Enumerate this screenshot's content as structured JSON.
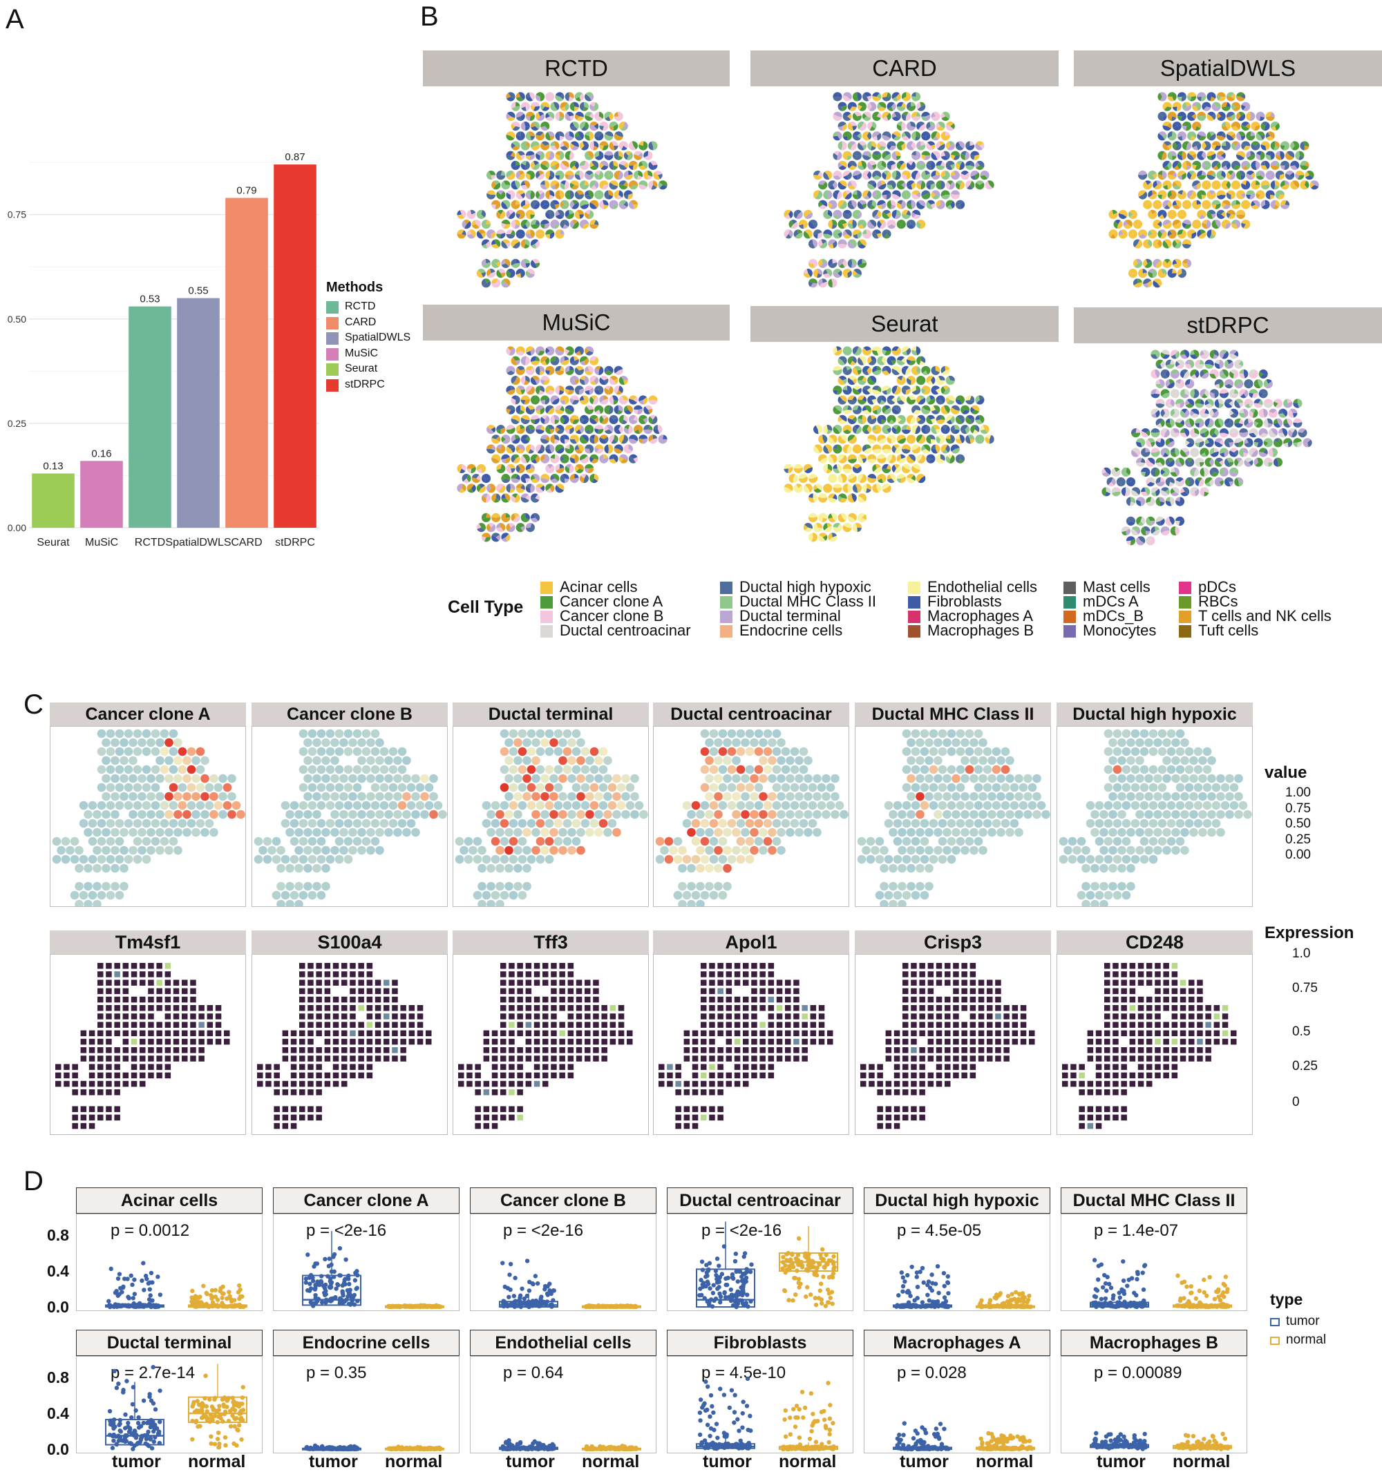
{
  "panels": {
    "a": "A",
    "b": "B",
    "c": "C",
    "d": "D"
  },
  "colors": {
    "RCTD": "#6cb897",
    "CARD": "#f08a68",
    "SpatialDWLS": "#8e94b6",
    "MuSiC": "#d57fba",
    "Seurat": "#9ccc55",
    "stDRPC": "#e8392f",
    "tumor": "#3c62a8",
    "normal": "#e2ad36",
    "low": "#a8ccd2",
    "high": "#e24a2a"
  },
  "chart_data": [
    {
      "id": "A",
      "type": "bar",
      "categories": [
        "Seurat",
        "MuSiC",
        "RCTD",
        "SpatialDWLS",
        "CARD",
        "stDRPC"
      ],
      "values": [
        0.13,
        0.16,
        0.53,
        0.55,
        0.79,
        0.87
      ],
      "value_labels": [
        "0.13",
        "0.16",
        "0.53",
        "0.55",
        "0.79",
        "0.87"
      ],
      "ylim": [
        0,
        0.9
      ],
      "yticks": [
        "0.00",
        "0.25",
        "0.50",
        "0.75"
      ],
      "ytick_values": [
        0,
        0.25,
        0.5,
        0.75
      ],
      "legend_title": "Methods",
      "legend": [
        "RCTD",
        "CARD",
        "SpatialDWLS",
        "MuSiC",
        "Seurat",
        "stDRPC"
      ]
    },
    {
      "id": "B",
      "type": "spatial-pie",
      "methods": [
        "RCTD",
        "CARD",
        "SpatialDWLS",
        "MuSiC",
        "Seurat",
        "stDRPC"
      ],
      "legend_title": "Cell Type",
      "cell_types": [
        {
          "name": "Acinar cells",
          "color": "#f5c542"
        },
        {
          "name": "Cancer clone A",
          "color": "#4d9a3a"
        },
        {
          "name": "Cancer clone B",
          "color": "#f4c6dd"
        },
        {
          "name": "Ductal centroacinar",
          "color": "#dcd8d6"
        },
        {
          "name": "Ductal high hypoxic",
          "color": "#4f6d9c"
        },
        {
          "name": "Ductal MHC Class II",
          "color": "#8ec78a"
        },
        {
          "name": "Ductal terminal",
          "color": "#bca6d4"
        },
        {
          "name": "Endocrine cells",
          "color": "#f3b183"
        },
        {
          "name": "Endothelial cells",
          "color": "#f6f19a"
        },
        {
          "name": "Fibroblasts",
          "color": "#3e5ba8"
        },
        {
          "name": "Macrophages A",
          "color": "#d6336e"
        },
        {
          "name": "Macrophages B",
          "color": "#a0522d"
        },
        {
          "name": "Mast cells",
          "color": "#5e5e5e"
        },
        {
          "name": "mDCs A",
          "color": "#2e8b6f"
        },
        {
          "name": "mDCs_B",
          "color": "#d2691e"
        },
        {
          "name": "Monocytes",
          "color": "#7a6bb0"
        },
        {
          "name": "pDCs",
          "color": "#e0358a"
        },
        {
          "name": "RBCs",
          "color": "#6a9a2a"
        },
        {
          "name": "T cells and NK cells",
          "color": "#e2a02b"
        },
        {
          "name": "Tuft cells",
          "color": "#8b6914"
        }
      ]
    },
    {
      "id": "C-value",
      "type": "spatial-heatmap",
      "facets": [
        "Cancer clone A",
        "Cancer clone B",
        "Ductal terminal",
        "Ductal centroacinar",
        "Ductal MHC Class II",
        "Ductal high hypoxic"
      ],
      "legend_title": "value",
      "legend_ticks": [
        "1.00",
        "0.75",
        "0.50",
        "0.25",
        "0.00"
      ]
    },
    {
      "id": "C-expression",
      "type": "spatial-heatmap",
      "facets": [
        "Tm4sf1",
        "S100a4",
        "Tff3",
        "Apol1",
        "Crisp3",
        "CD248"
      ],
      "legend_title": "Expression",
      "legend_ticks": [
        "1.0",
        "0.75",
        "0.5",
        "0.25",
        "0"
      ]
    },
    {
      "id": "D",
      "type": "boxplot",
      "groups": [
        "tumor",
        "normal"
      ],
      "legend_title": "type",
      "yticks": [
        "0.8",
        "0.4",
        "0.0"
      ],
      "ytick_values": [
        0.8,
        0.4,
        0.0
      ],
      "ylim": [
        0,
        1.0
      ],
      "facets": [
        {
          "name": "Acinar cells",
          "p": "p = 0.0012",
          "tumor": {
            "med": 0.01,
            "q1": 0.0,
            "q3": 0.02,
            "max": 0.55
          },
          "normal": {
            "med": 0.01,
            "q1": 0.0,
            "q3": 0.02,
            "max": 0.3
          }
        },
        {
          "name": "Cancer clone A",
          "p": "p = <2e-16",
          "tumor": {
            "med": 0.08,
            "q1": 0.02,
            "q3": 0.35,
            "max": 0.95
          },
          "normal": {
            "med": 0.0,
            "q1": 0.0,
            "q3": 0.01,
            "max": 0.02
          }
        },
        {
          "name": "Cancer clone B",
          "p": "p = <2e-16",
          "tumor": {
            "med": 0.02,
            "q1": 0.0,
            "q3": 0.06,
            "max": 0.55
          },
          "normal": {
            "med": 0.0,
            "q1": 0.0,
            "q3": 0.01,
            "max": 0.02
          }
        },
        {
          "name": "Ductal centroacinar",
          "p": "p = <2e-16",
          "tumor": {
            "med": 0.08,
            "q1": 0.0,
            "q3": 0.42,
            "max": 0.95
          },
          "normal": {
            "med": 0.5,
            "q1": 0.4,
            "q3": 0.6,
            "max": 0.9
          }
        },
        {
          "name": "Ductal high hypoxic",
          "p": "p = 4.5e-05",
          "tumor": {
            "med": 0.01,
            "q1": 0.0,
            "q3": 0.02,
            "max": 0.55
          },
          "normal": {
            "med": 0.0,
            "q1": 0.0,
            "q3": 0.01,
            "max": 0.2
          }
        },
        {
          "name": "Ductal MHC Class II",
          "p": "p = 1.4e-07",
          "tumor": {
            "med": 0.02,
            "q1": 0.0,
            "q3": 0.05,
            "max": 0.6
          },
          "normal": {
            "med": 0.01,
            "q1": 0.0,
            "q3": 0.02,
            "max": 0.45
          }
        },
        {
          "name": "Ductal terminal",
          "p": "p = 2.7e-14",
          "tumor": {
            "med": 0.15,
            "q1": 0.05,
            "q3": 0.33,
            "max": 0.95
          },
          "normal": {
            "med": 0.4,
            "q1": 0.3,
            "q3": 0.58,
            "max": 0.95
          }
        },
        {
          "name": "Endocrine cells",
          "p": "p = 0.35",
          "tumor": {
            "med": 0.0,
            "q1": 0.0,
            "q3": 0.01,
            "max": 0.05
          },
          "normal": {
            "med": 0.0,
            "q1": 0.0,
            "q3": 0.01,
            "max": 0.03
          }
        },
        {
          "name": "Endothelial cells",
          "p": "p = 0.64",
          "tumor": {
            "med": 0.01,
            "q1": 0.0,
            "q3": 0.02,
            "max": 0.1
          },
          "normal": {
            "med": 0.0,
            "q1": 0.0,
            "q3": 0.01,
            "max": 0.05
          }
        },
        {
          "name": "Fibroblasts",
          "p": "p = 4.5e-10",
          "tumor": {
            "med": 0.03,
            "q1": 0.01,
            "q3": 0.06,
            "max": 0.95
          },
          "normal": {
            "med": 0.02,
            "q1": 0.0,
            "q3": 0.03,
            "max": 0.9
          }
        },
        {
          "name": "Macrophages A",
          "p": "p = 0.028",
          "tumor": {
            "med": 0.01,
            "q1": 0.0,
            "q3": 0.02,
            "max": 0.3
          },
          "normal": {
            "med": 0.01,
            "q1": 0.0,
            "q3": 0.02,
            "max": 0.25
          }
        },
        {
          "name": "Macrophages B",
          "p": "p = 0.00089",
          "tumor": {
            "med": 0.03,
            "q1": 0.02,
            "q3": 0.05,
            "max": 0.2
          },
          "normal": {
            "med": 0.02,
            "q1": 0.01,
            "q3": 0.04,
            "max": 0.2
          }
        }
      ]
    }
  ]
}
